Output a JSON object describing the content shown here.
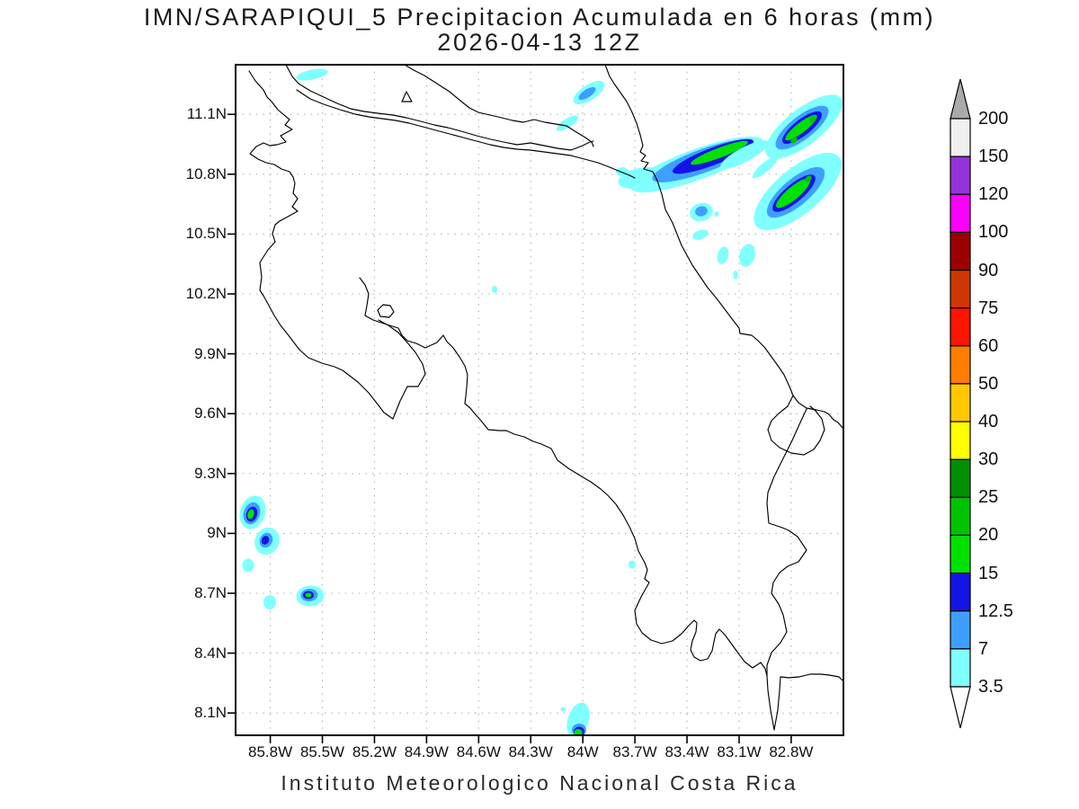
{
  "title": {
    "line1": "IMN/SARAPIQUI_5 Precipitacion Acumulada en 6 horas (mm)",
    "line2": "2026-04-13 12Z"
  },
  "footer": "Instituto Meteorologico Nacional Costa Rica",
  "map": {
    "lat_tick_labels": [
      "11.1N",
      "10.8N",
      "10.5N",
      "10.2N",
      "9.9N",
      "9.6N",
      "9.3N",
      "9N",
      "8.7N",
      "8.4N",
      "8.1N"
    ],
    "lon_tick_labels": [
      "85.8W",
      "85.5W",
      "85.2W",
      "84.9W",
      "84.6W",
      "84.3W",
      "84W",
      "83.7W",
      "83.4W",
      "83.1W",
      "82.8W"
    ],
    "region": "Costa Rica and surroundings",
    "grid_style": "dotted"
  },
  "colorbar": {
    "labels_top_to_bottom": [
      "200",
      "150",
      "120",
      "100",
      "90",
      "75",
      "60",
      "50",
      "40",
      "30",
      "25",
      "20",
      "15",
      "12.5",
      "7",
      "3.5"
    ],
    "segment_colors_top_to_bottom": [
      "#F0F0F0",
      "#9632DC",
      "#FA00FA",
      "#9B0000",
      "#CD3700",
      "#FF1400",
      "#FF7D00",
      "#FFC800",
      "#FFFF00",
      "#008F00",
      "#00C300",
      "#00E100",
      "#1414E6",
      "#3F9FFF",
      "#80FFFF"
    ],
    "above_max_color": "#AAAAAA",
    "below_min_color": "#FFFFFF",
    "units": "mm"
  },
  "chart_data": {
    "type": "heatmap",
    "subtype": "filled-contour-precipitation-map",
    "title": "IMN/SARAPIQUI_5 Precipitacion Acumulada en 6 horas (mm)",
    "subtitle": "2026-04-13 12Z",
    "units": "mm",
    "lat_range": [
      8.0,
      11.35
    ],
    "lon_range": [
      -86.0,
      -82.5
    ],
    "lat_ticks": [
      11.1,
      10.8,
      10.5,
      10.2,
      9.9,
      9.6,
      9.3,
      9.0,
      8.7,
      8.4,
      8.1
    ],
    "lon_ticks": [
      -85.8,
      -85.5,
      -85.2,
      -84.9,
      -84.6,
      -84.3,
      -84.0,
      -83.7,
      -83.4,
      -83.1,
      -82.8
    ],
    "grid": true,
    "gridline_spacing_deg": 0.3,
    "legend_position": "right",
    "levels_mm": [
      3.5,
      7,
      12.5,
      15,
      20,
      25,
      30,
      40,
      50,
      60,
      75,
      90,
      100,
      120,
      150,
      200
    ],
    "level_colors": [
      "#80FFFF",
      "#3F9FFF",
      "#1414E6",
      "#00E100",
      "#00C300",
      "#008F00",
      "#FFFF00",
      "#FFC800",
      "#FF7D00",
      "#FF1400",
      "#CD3700",
      "#9B0000",
      "#FA00FA",
      "#9632DC",
      "#F0F0F0"
    ],
    "features": [
      {
        "name": "band-caribbean-central",
        "lat": 10.88,
        "lon": -83.25,
        "max_range_mm": "15-20",
        "shape": "elongated band, ENE oriented, offshore Caribbean"
      },
      {
        "name": "band-caribbean-northeast",
        "lat": 11.03,
        "lon": -82.74,
        "max_range_mm": "20-25",
        "shape": "elongated band NE, small 20-25 cores"
      },
      {
        "name": "band-caribbean-east",
        "lat": 10.71,
        "lon": -82.78,
        "max_range_mm": "20-25",
        "shape": "elongated band NE"
      },
      {
        "name": "cell-caribbean-coast",
        "lat": 10.62,
        "lon": -83.32,
        "max_range_mm": "7-12.5",
        "shape": "small cell"
      },
      {
        "name": "cells-caribbean-scattered",
        "lat": 10.4,
        "lon": -83.2,
        "max_range_mm": "3.5-7",
        "shape": "several small specks"
      },
      {
        "name": "cell-ne-nicaragua-coast",
        "lat": 11.21,
        "lon": -83.97,
        "max_range_mm": "7-12.5",
        "shape": "small band"
      },
      {
        "name": "streak-lake-nicaragua",
        "lat": 11.31,
        "lon": -85.56,
        "max_range_mm": "3.5-7",
        "shape": "thin streak"
      },
      {
        "name": "cell-nicoya-northwest",
        "lat": 9.11,
        "lon": -85.9,
        "max_range_mm": "15-20",
        "shape": "small cell off Pacific coast"
      },
      {
        "name": "cell-nicoya-west",
        "lat": 8.97,
        "lon": -85.81,
        "max_range_mm": "12.5-15",
        "shape": "small cell"
      },
      {
        "name": "cell-nicoya-southwest",
        "lat": 8.7,
        "lon": -85.57,
        "max_range_mm": "15-20",
        "shape": "small cell"
      },
      {
        "name": "cell-pacific-south",
        "lat": 8.06,
        "lon": -84.03,
        "max_range_mm": "15-20",
        "shape": "small cell clipped at frame bottom"
      },
      {
        "name": "speck-central",
        "lat": 10.23,
        "lon": -84.51,
        "max_range_mm": "3.5-7",
        "shape": "speck"
      },
      {
        "name": "speck-south-pacific-coast",
        "lat": 8.85,
        "lon": -83.72,
        "max_range_mm": "3.5-7",
        "shape": "speck"
      }
    ]
  }
}
